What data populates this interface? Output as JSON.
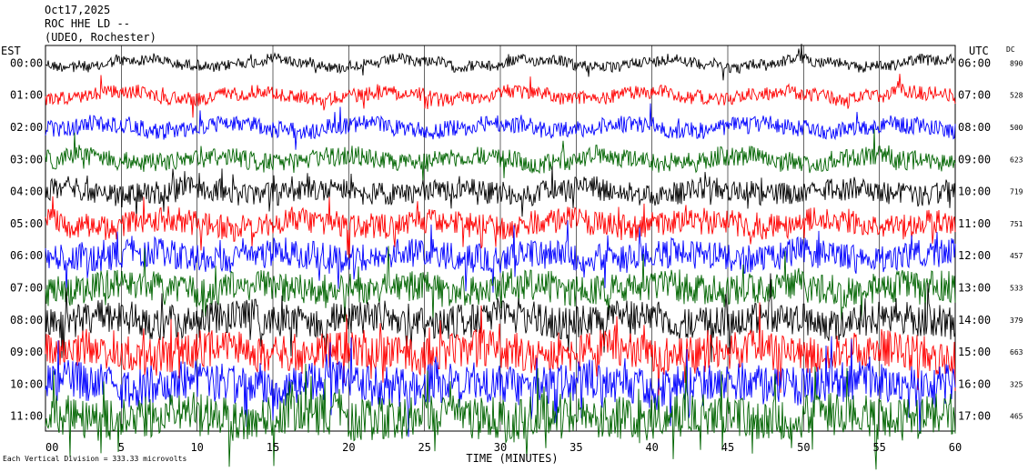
{
  "header": {
    "date": "Oct17,2025",
    "station": "ROC HHE LD --",
    "network": "(UDEO, Rochester)"
  },
  "footer_note": "Each Vertical Division = 333.33 microvolts",
  "chart_data": {
    "type": "line",
    "title": "",
    "xlabel": "TIME (MINUTES)",
    "ylabel_left": "EST",
    "ylabel_right": "UTC",
    "dc_header": "DC",
    "xlim": [
      0,
      60
    ],
    "x_ticks": [
      "00",
      "5",
      "10",
      "15",
      "20",
      "25",
      "30",
      "35",
      "40",
      "45",
      "50",
      "55",
      "60"
    ],
    "trace_colors": [
      "#000000",
      "#ff0000",
      "#0000ff",
      "#006400"
    ],
    "rows": [
      {
        "est": "00:00",
        "utc": "06:00",
        "dc": "890"
      },
      {
        "est": "01:00",
        "utc": "07:00",
        "dc": "528"
      },
      {
        "est": "02:00",
        "utc": "08:00",
        "dc": "500"
      },
      {
        "est": "03:00",
        "utc": "09:00",
        "dc": "623"
      },
      {
        "est": "04:00",
        "utc": "10:00",
        "dc": "719"
      },
      {
        "est": "05:00",
        "utc": "11:00",
        "dc": "751"
      },
      {
        "est": "06:00",
        "utc": "12:00",
        "dc": "457"
      },
      {
        "est": "07:00",
        "utc": "13:00",
        "dc": "533"
      },
      {
        "est": "08:00",
        "utc": "14:00",
        "dc": "379"
      },
      {
        "est": "09:00",
        "utc": "15:00",
        "dc": "663"
      },
      {
        "est": "10:00",
        "utc": "16:00",
        "dc": "325"
      },
      {
        "est": "11:00",
        "utc": "17:00",
        "dc": "465"
      }
    ]
  }
}
